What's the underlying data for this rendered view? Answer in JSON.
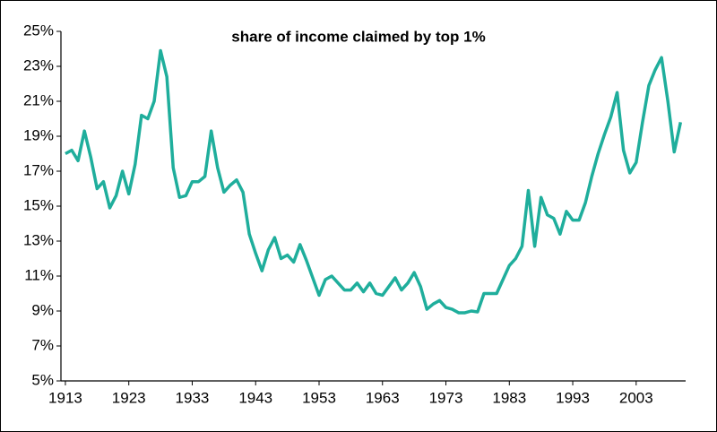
{
  "chart_data": {
    "type": "line",
    "title": "share of income claimed by top 1%",
    "x": [
      1913,
      1914,
      1915,
      1916,
      1917,
      1918,
      1919,
      1920,
      1921,
      1922,
      1923,
      1924,
      1925,
      1926,
      1927,
      1928,
      1929,
      1930,
      1931,
      1932,
      1933,
      1934,
      1935,
      1936,
      1937,
      1938,
      1939,
      1940,
      1941,
      1942,
      1943,
      1944,
      1945,
      1946,
      1947,
      1948,
      1949,
      1950,
      1951,
      1952,
      1953,
      1954,
      1955,
      1956,
      1957,
      1958,
      1959,
      1960,
      1961,
      1962,
      1963,
      1964,
      1965,
      1966,
      1967,
      1968,
      1969,
      1970,
      1971,
      1972,
      1973,
      1974,
      1975,
      1976,
      1977,
      1978,
      1979,
      1980,
      1981,
      1982,
      1983,
      1984,
      1985,
      1986,
      1987,
      1988,
      1989,
      1990,
      1991,
      1992,
      1993,
      1994,
      1995,
      1996,
      1997,
      1998,
      1999,
      2000,
      2001,
      2002,
      2003,
      2004,
      2005,
      2006,
      2007,
      2008,
      2009,
      2010
    ],
    "series": [
      {
        "color": "#1fae9c",
        "values": [
          18.0,
          18.2,
          17.6,
          19.3,
          17.8,
          16.0,
          16.4,
          14.9,
          15.6,
          17.0,
          15.7,
          17.4,
          20.2,
          20.0,
          21.0,
          23.9,
          22.4,
          17.2,
          15.5,
          15.6,
          16.4,
          16.4,
          16.7,
          19.3,
          17.2,
          15.8,
          16.2,
          16.5,
          15.8,
          13.4,
          12.3,
          11.3,
          12.5,
          13.2,
          12.0,
          12.2,
          11.8,
          12.8,
          11.9,
          10.9,
          9.9,
          10.8,
          11.0,
          10.6,
          10.2,
          10.2,
          10.6,
          10.1,
          10.6,
          10.0,
          9.9,
          10.4,
          10.9,
          10.2,
          10.6,
          11.2,
          10.4,
          9.1,
          9.4,
          9.6,
          9.2,
          9.1,
          8.9,
          8.9,
          9.0,
          8.95,
          10.0,
          10.0,
          10.0,
          10.8,
          11.6,
          12.0,
          12.7,
          15.9,
          12.7,
          15.5,
          14.5,
          14.3,
          13.4,
          14.7,
          14.2,
          14.2,
          15.2,
          16.7,
          18.0,
          19.1,
          20.1,
          21.5,
          18.2,
          16.9,
          17.5,
          19.8,
          21.9,
          22.8,
          23.5,
          21.0,
          18.1,
          19.8
        ]
      }
    ],
    "xlim": [
      1912.3,
      2010.8
    ],
    "xticks": [
      1913,
      1923,
      1933,
      1943,
      1953,
      1963,
      1973,
      1983,
      1993,
      2003
    ],
    "ylim": [
      5,
      25
    ],
    "yticks": [
      {
        "value": 5,
        "label": "5%"
      },
      {
        "value": 7,
        "label": "7%"
      },
      {
        "value": 9,
        "label": "9%"
      },
      {
        "value": 11,
        "label": "11%"
      },
      {
        "value": 13,
        "label": "13%"
      },
      {
        "value": 15,
        "label": "15%"
      },
      {
        "value": 17,
        "label": "17%"
      },
      {
        "value": 19,
        "label": "19%"
      },
      {
        "value": 21,
        "label": "21%"
      },
      {
        "value": 23,
        "label": "23%"
      },
      {
        "value": 25,
        "label": "25%"
      }
    ]
  }
}
